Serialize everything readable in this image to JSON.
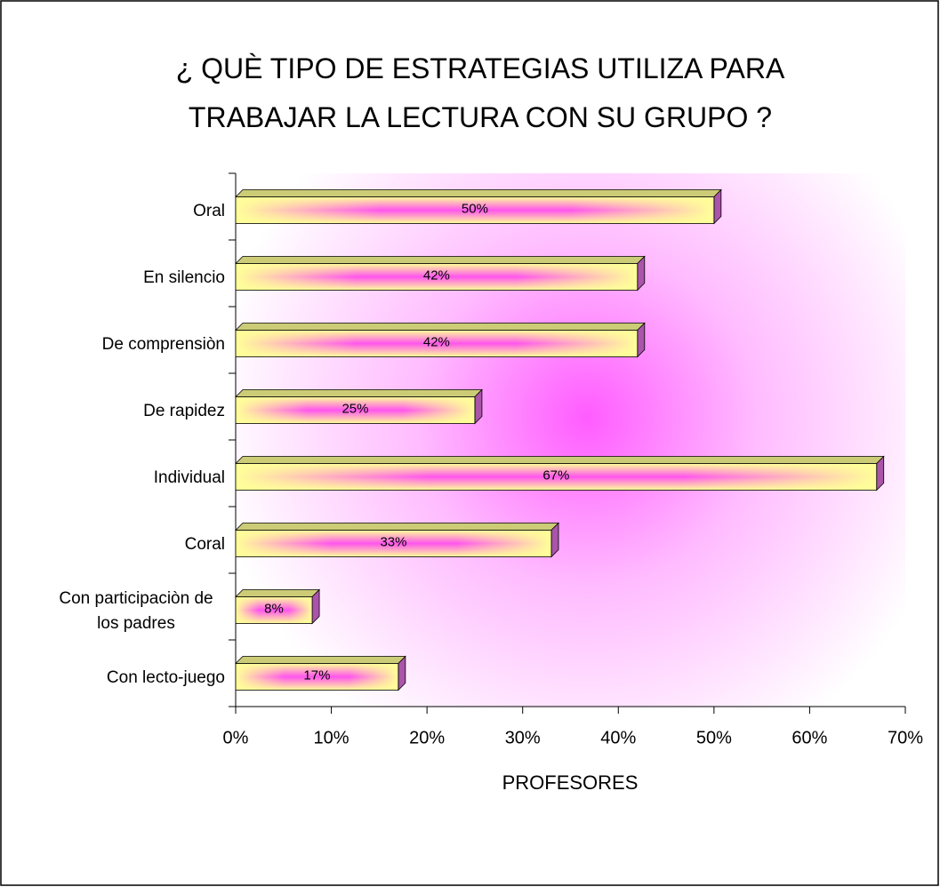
{
  "chart_data": {
    "type": "bar",
    "orientation": "horizontal",
    "title": "¿ QUÈ TIPO DE ESTRATEGIAS UTILIZA PARA TRABAJAR LA LECTURA CON SU GRUPO ?",
    "x_label": "PROFESORES",
    "categories": [
      "Oral",
      "En silencio",
      "De comprensiòn",
      "De rapidez",
      "Individual",
      "Coral",
      "Con participaciòn de los padres",
      "Con lecto-juego"
    ],
    "values": [
      50,
      42,
      42,
      25,
      67,
      33,
      8,
      17
    ],
    "value_labels": [
      "50%",
      "42%",
      "42%",
      "25%",
      "67%",
      "33%",
      "8%",
      "17%"
    ],
    "color": "#ffff99",
    "xlim": [
      0,
      70
    ],
    "xticks": [
      {
        "value": 0,
        "label": "0%"
      },
      {
        "value": 10,
        "label": "10%"
      },
      {
        "value": 20,
        "label": "20%"
      },
      {
        "value": 30,
        "label": "30%"
      },
      {
        "value": 40,
        "label": "40%"
      },
      {
        "value": 50,
        "label": "50%"
      },
      {
        "value": 60,
        "label": "60%"
      },
      {
        "value": 70,
        "label": "70%"
      }
    ]
  }
}
